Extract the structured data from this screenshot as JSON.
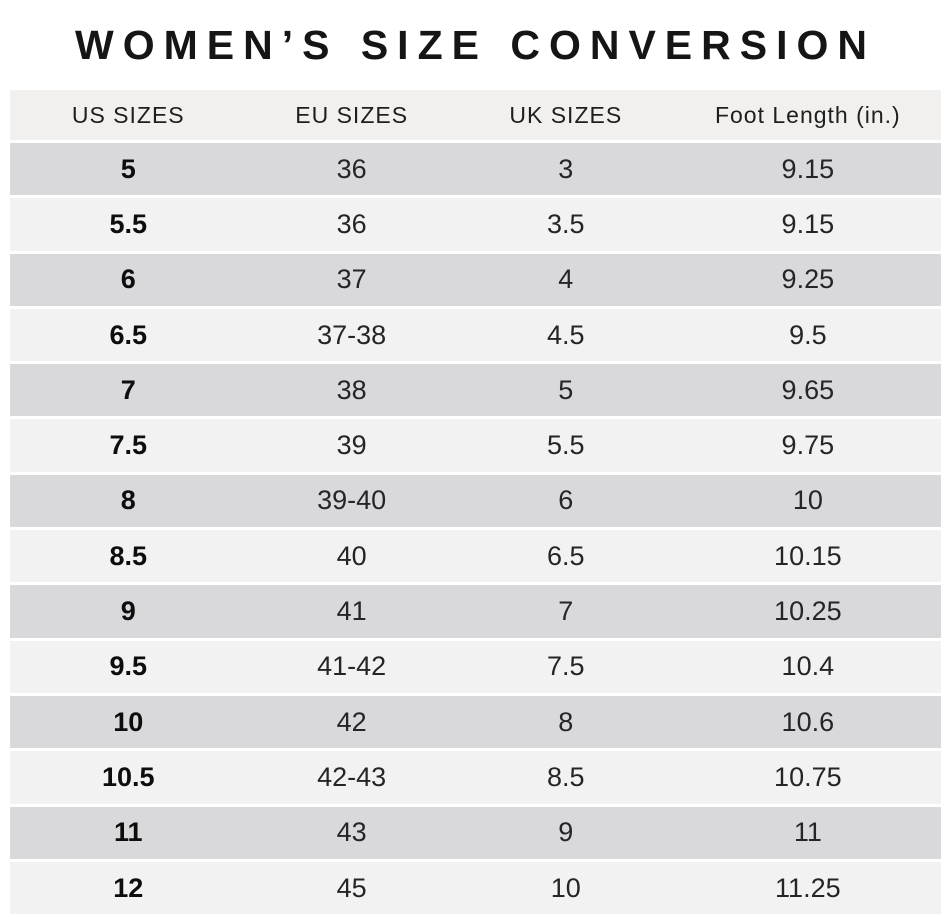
{
  "title": "WOMEN’S SIZE CONVERSION",
  "table": {
    "headers": {
      "us": "US SIZES",
      "eu": "EU SIZES",
      "uk": "UK SIZES",
      "foot": "Foot Length (in.)"
    },
    "rows": [
      {
        "us": "5",
        "eu": "36",
        "uk": "3",
        "foot": "9.15"
      },
      {
        "us": "5.5",
        "eu": "36",
        "uk": "3.5",
        "foot": "9.15"
      },
      {
        "us": "6",
        "eu": "37",
        "uk": "4",
        "foot": "9.25"
      },
      {
        "us": "6.5",
        "eu": "37-38",
        "uk": "4.5",
        "foot": "9.5"
      },
      {
        "us": "7",
        "eu": "38",
        "uk": "5",
        "foot": "9.65"
      },
      {
        "us": "7.5",
        "eu": "39",
        "uk": "5.5",
        "foot": "9.75"
      },
      {
        "us": "8",
        "eu": "39-40",
        "uk": "6",
        "foot": "10"
      },
      {
        "us": "8.5",
        "eu": "40",
        "uk": "6.5",
        "foot": "10.15"
      },
      {
        "us": "9",
        "eu": "41",
        "uk": "7",
        "foot": "10.25"
      },
      {
        "us": "9.5",
        "eu": "41-42",
        "uk": "7.5",
        "foot": "10.4"
      },
      {
        "us": "10",
        "eu": "42",
        "uk": "8",
        "foot": "10.6"
      },
      {
        "us": "10.5",
        "eu": "42-43",
        "uk": "8.5",
        "foot": "10.75"
      },
      {
        "us": "11",
        "eu": "43",
        "uk": "9",
        "foot": "11"
      },
      {
        "us": "12",
        "eu": "45",
        "uk": "10",
        "foot": "11.25"
      }
    ]
  },
  "chart_data": {
    "type": "table",
    "title": "WOMEN’S SIZE CONVERSION",
    "columns": [
      "US SIZES",
      "EU SIZES",
      "UK SIZES",
      "Foot Length (in.)"
    ],
    "rows": [
      [
        "5",
        "36",
        "3",
        "9.15"
      ],
      [
        "5.5",
        "36",
        "3.5",
        "9.15"
      ],
      [
        "6",
        "37",
        "4",
        "9.25"
      ],
      [
        "6.5",
        "37-38",
        "4.5",
        "9.5"
      ],
      [
        "7",
        "38",
        "5",
        "9.65"
      ],
      [
        "7.5",
        "39",
        "5.5",
        "9.75"
      ],
      [
        "8",
        "39-40",
        "6",
        "10"
      ],
      [
        "8.5",
        "40",
        "6.5",
        "10.15"
      ],
      [
        "9",
        "41",
        "7",
        "10.25"
      ],
      [
        "9.5",
        "41-42",
        "7.5",
        "10.4"
      ],
      [
        "10",
        "42",
        "8",
        "10.6"
      ],
      [
        "10.5",
        "42-43",
        "8.5",
        "10.75"
      ],
      [
        "11",
        "43",
        "9",
        "11"
      ],
      [
        "12",
        "45",
        "10",
        "11.25"
      ]
    ],
    "layout_hints": {
      "header_background": "#f1f0ee",
      "row_alt_dark": "#d9d9db",
      "row_alt_light": "#f2f2f3",
      "row_separator": "#ffffff",
      "text_color": "#1c1c1c",
      "zebra_striping": true,
      "all_cells_centered": true
    }
  }
}
